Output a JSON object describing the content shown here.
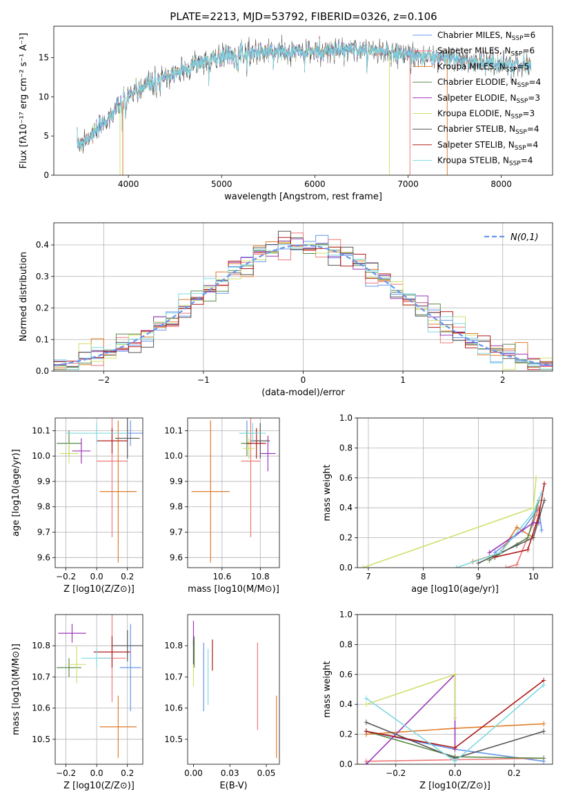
{
  "figure": {
    "title": "PLATE=2213, MJD=53792, FIBERID=0326, z=0.106"
  },
  "colors": {
    "Chabrier MILES": "#6495ed",
    "Salpeter MILES": "#ee7777",
    "Kroupa MILES": "#e07b28",
    "Chabrier ELODIE": "#5a8a4a",
    "Salpeter ELODIE": "#9a35b8",
    "Kroupa ELODIE": "#cfe06a",
    "Chabrier STELIB": "#555555",
    "Salpeter STELIB": "#b01818",
    "Kroupa STELIB": "#7fd8e0",
    "normal": "#6495ed"
  },
  "chart_data": [
    {
      "id": "spectrum",
      "type": "line",
      "xlabel": "wavelength [Angstrom, rest frame]",
      "ylabel": "Flux [f_λ 10^-17 erg cm^-2 s^-1 A^-1]",
      "xlim": [
        3200,
        8550
      ],
      "ylim": [
        0,
        19
      ],
      "xticks": [
        4000,
        5000,
        6000,
        7000,
        8000
      ],
      "yticks": [
        0,
        5,
        10,
        15
      ],
      "legend_position": "top-right",
      "series": [
        {
          "name": "Chabrier MILES, N_SSP=6"
        },
        {
          "name": "Salpeter MILES, N_SSP=6"
        },
        {
          "name": "Kroupa MILES, N_SSP=5"
        },
        {
          "name": "Chabrier ELODIE, N_SSP=4"
        },
        {
          "name": "Salpeter ELODIE, N_SSP=3"
        },
        {
          "name": "Kroupa ELODIE, N_SSP=3"
        },
        {
          "name": "Chabrier STELIB, N_SSP=4"
        },
        {
          "name": "Salpeter STELIB, N_SSP=4"
        },
        {
          "name": "Kroupa STELIB, N_SSP=4"
        }
      ],
      "continuum": {
        "x": [
          3450,
          3600,
          3800,
          3950,
          4100,
          4300,
          4600,
          4900,
          5200,
          5500,
          5800,
          6100,
          6400,
          6700,
          7000,
          7300,
          7600,
          8000,
          8300
        ],
        "y": [
          4.0,
          5.0,
          7.5,
          9.5,
          11.0,
          12.0,
          13.5,
          15.0,
          15.5,
          15.8,
          15.8,
          15.8,
          16.0,
          15.8,
          15.4,
          15.0,
          14.6,
          14.2,
          14.0
        ]
      }
    },
    {
      "id": "residuals",
      "type": "step",
      "xlabel": "(data-model)/error",
      "ylabel": "Normed distribution",
      "xlim": [
        -2.5,
        2.5
      ],
      "ylim": [
        0,
        0.47
      ],
      "xticks": [
        -2,
        -1,
        0,
        1,
        2
      ],
      "yticks": [
        0.0,
        0.1,
        0.2,
        0.3,
        0.4
      ],
      "grid": true,
      "legend_position": "top-right",
      "normal_label": "N(0,1)"
    },
    {
      "id": "age_vs_Z",
      "type": "errorbar",
      "xlabel": "Z [log10(Z/Z⊙)]",
      "ylabel": "age [log10(age/yr)]",
      "xlim": [
        -0.27,
        0.3
      ],
      "ylim": [
        9.56,
        10.15
      ],
      "xticks": [
        -0.2,
        0.0,
        0.2
      ],
      "yticks": [
        9.6,
        9.7,
        9.8,
        9.9,
        10.0,
        10.1
      ],
      "grid": true,
      "points": [
        {
          "s": "Chabrier MILES",
          "x": 0.22,
          "xerr": 0.08,
          "y": 10.09,
          "yerr": 0.05
        },
        {
          "s": "Salpeter MILES",
          "x": 0.1,
          "xerr": 0.1,
          "y": 9.98,
          "yerr": 0.3
        },
        {
          "s": "Kroupa MILES",
          "x": 0.14,
          "xerr": 0.12,
          "y": 9.86,
          "yerr": 0.28
        },
        {
          "s": "Chabrier ELODIE",
          "x": -0.18,
          "xerr": 0.08,
          "y": 10.05,
          "yerr": 0.05
        },
        {
          "s": "Salpeter ELODIE",
          "x": -0.1,
          "xerr": 0.06,
          "y": 10.02,
          "yerr": 0.05
        },
        {
          "s": "Kroupa ELODIE",
          "x": -0.18,
          "xerr": 0.06,
          "y": 10.01,
          "yerr": 0.04
        },
        {
          "s": "Chabrier STELIB",
          "x": 0.2,
          "xerr": 0.08,
          "y": 10.07,
          "yerr": 0.08
        },
        {
          "s": "Salpeter STELIB",
          "x": 0.1,
          "xerr": 0.1,
          "y": 10.06,
          "yerr": 0.05
        },
        {
          "s": "Kroupa STELIB",
          "x": 0.0,
          "xerr": 0.2,
          "y": 10.09,
          "yerr": 0.04
        }
      ]
    },
    {
      "id": "age_vs_mass",
      "type": "errorbar",
      "xlabel": "mass [log10(M/M⊙)]",
      "ylabel": "",
      "xlim": [
        10.42,
        10.9
      ],
      "ylim": [
        9.56,
        10.15
      ],
      "xticks": [
        10.6,
        10.8
      ],
      "yticks": [
        9.6,
        9.7,
        9.8,
        9.9,
        10.0,
        10.1
      ],
      "grid": true,
      "points": [
        {
          "s": "Chabrier MILES",
          "x": 10.73,
          "xerr": 0.04,
          "y": 10.09,
          "yerr": 0.05
        },
        {
          "s": "Salpeter MILES",
          "x": 10.75,
          "xerr": 0.05,
          "y": 9.98,
          "yerr": 0.3
        },
        {
          "s": "Kroupa MILES",
          "x": 10.54,
          "xerr": 0.1,
          "y": 9.86,
          "yerr": 0.28
        },
        {
          "s": "Chabrier ELODIE",
          "x": 10.73,
          "xerr": 0.03,
          "y": 10.05,
          "yerr": 0.05
        },
        {
          "s": "Salpeter ELODIE",
          "x": 10.84,
          "xerr": 0.04,
          "y": 10.01,
          "yerr": 0.07
        },
        {
          "s": "Kroupa ELODIE",
          "x": 10.74,
          "xerr": 0.03,
          "y": 10.03,
          "yerr": 0.04
        },
        {
          "s": "Chabrier STELIB",
          "x": 10.8,
          "xerr": 0.05,
          "y": 10.06,
          "yerr": 0.07
        },
        {
          "s": "Salpeter STELIB",
          "x": 10.78,
          "xerr": 0.05,
          "y": 10.05,
          "yerr": 0.06
        },
        {
          "s": "Kroupa STELIB",
          "x": 10.76,
          "xerr": 0.07,
          "y": 10.09,
          "yerr": 0.04
        }
      ]
    },
    {
      "id": "massweight_vs_age",
      "type": "line",
      "xlabel": "age [log10(age/yr)]",
      "ylabel": "mass weight",
      "xlim": [
        6.8,
        10.35
      ],
      "ylim": [
        0,
        1
      ],
      "xticks": [
        7,
        8,
        9,
        10
      ],
      "yticks": [
        0.0,
        0.2,
        0.4,
        0.6,
        0.8,
        1.0
      ],
      "grid": true,
      "series": [
        {
          "s": "Chabrier MILES",
          "x": [
            9.3,
            9.8,
            10.1,
            10.15
          ],
          "y": [
            0.1,
            0.25,
            0.4,
            0.25
          ]
        },
        {
          "s": "Salpeter MILES",
          "x": [
            9.5,
            9.7,
            10.0,
            10.1
          ],
          "y": [
            0.0,
            0.02,
            0.3,
            0.4
          ]
        },
        {
          "s": "Kroupa MILES",
          "x": [
            8.9,
            9.4,
            9.7,
            10.0
          ],
          "y": [
            0.04,
            0.1,
            0.27,
            0.2
          ]
        },
        {
          "s": "Chabrier ELODIE",
          "x": [
            9.2,
            9.9,
            10.1
          ],
          "y": [
            0.05,
            0.2,
            0.45
          ]
        },
        {
          "s": "Salpeter ELODIE",
          "x": [
            9.2,
            10.0,
            10.1
          ],
          "y": [
            0.1,
            0.3,
            0.3
          ]
        },
        {
          "s": "Kroupa ELODIE",
          "x": [
            6.9,
            10.0,
            10.05
          ],
          "y": [
            0.0,
            0.4,
            0.6
          ]
        },
        {
          "s": "Chabrier STELIB",
          "x": [
            9.0,
            9.7,
            10.0,
            10.2
          ],
          "y": [
            0.03,
            0.15,
            0.2,
            0.45
          ]
        },
        {
          "s": "Salpeter STELIB",
          "x": [
            9.3,
            9.9,
            10.1,
            10.2
          ],
          "y": [
            0.07,
            0.12,
            0.35,
            0.56
          ]
        },
        {
          "s": "Kroupa STELIB",
          "x": [
            8.6,
            9.4,
            10.0,
            10.15
          ],
          "y": [
            0.0,
            0.1,
            0.37,
            0.5
          ]
        }
      ]
    },
    {
      "id": "mass_vs_Z",
      "type": "errorbar",
      "xlabel": "Z [log10(Z/Z⊙)]",
      "ylabel": "mass [log10(M/M⊙)]",
      "xlim": [
        -0.27,
        0.3
      ],
      "ylim": [
        10.42,
        10.9
      ],
      "xticks": [
        -0.2,
        0.0,
        0.2
      ],
      "yticks": [
        10.5,
        10.6,
        10.7,
        10.8
      ],
      "grid": true,
      "points": [
        {
          "s": "Chabrier MILES",
          "x": 0.22,
          "xerr": 0.07,
          "y": 10.73,
          "yerr": 0.14
        },
        {
          "s": "Salpeter MILES",
          "x": 0.1,
          "xerr": 0.09,
          "y": 10.76,
          "yerr": 0.14
        },
        {
          "s": "Kroupa MILES",
          "x": 0.14,
          "xerr": 0.12,
          "y": 10.54,
          "yerr": 0.1
        },
        {
          "s": "Chabrier ELODIE",
          "x": -0.18,
          "xerr": 0.08,
          "y": 10.73,
          "yerr": 0.03
        },
        {
          "s": "Salpeter ELODIE",
          "x": -0.16,
          "xerr": 0.09,
          "y": 10.84,
          "yerr": 0.03
        },
        {
          "s": "Kroupa ELODIE",
          "x": -0.13,
          "xerr": 0.06,
          "y": 10.74,
          "yerr": 0.06
        },
        {
          "s": "Chabrier STELIB",
          "x": 0.2,
          "xerr": 0.1,
          "y": 10.8,
          "yerr": 0.05
        },
        {
          "s": "Salpeter STELIB",
          "x": 0.1,
          "xerr": 0.12,
          "y": 10.78,
          "yerr": 0.05
        },
        {
          "s": "Kroupa STELIB",
          "x": 0.0,
          "xerr": 0.1,
          "y": 10.76,
          "yerr": 0.03
        }
      ]
    },
    {
      "id": "mass_vs_EBV",
      "type": "errorbar",
      "xlabel": "E(B-V)",
      "ylabel": "",
      "xlim": [
        -0.004,
        0.059
      ],
      "ylim": [
        10.42,
        10.9
      ],
      "xticks": [
        0.0,
        0.025,
        0.05
      ],
      "yticks": [
        10.5,
        10.6,
        10.7,
        10.8
      ],
      "grid": false,
      "points": [
        {
          "s": "Chabrier MILES",
          "x": 0.007,
          "xerr": 0,
          "y": 10.7,
          "yerr": 0.11
        },
        {
          "s": "Salpeter MILES",
          "x": 0.044,
          "xerr": 0,
          "y": 10.67,
          "yerr": 0.14
        },
        {
          "s": "Kroupa MILES",
          "x": 0.057,
          "xerr": 0,
          "y": 10.54,
          "yerr": 0.1
        },
        {
          "s": "Chabrier ELODIE",
          "x": 0.0005,
          "xerr": 0,
          "y": 10.78,
          "yerr": 0.05
        },
        {
          "s": "Salpeter ELODIE",
          "x": 0.0,
          "xerr": 0,
          "y": 10.84,
          "yerr": 0.04
        },
        {
          "s": "Kroupa ELODIE",
          "x": 0.0,
          "xerr": 0,
          "y": 10.72,
          "yerr": 0.05
        },
        {
          "s": "Chabrier STELIB",
          "x": 0.0,
          "xerr": 0,
          "y": 10.78,
          "yerr": 0.04
        },
        {
          "s": "Salpeter STELIB",
          "x": 0.013,
          "xerr": 0,
          "y": 10.77,
          "yerr": 0.05
        },
        {
          "s": "Kroupa STELIB",
          "x": 0.01,
          "xerr": 0,
          "y": 10.7,
          "yerr": 0.09
        }
      ]
    },
    {
      "id": "massweight_vs_Z",
      "type": "line",
      "xlabel": "Z [log10(Z/Z⊙)]",
      "ylabel": "mass weight",
      "xlim": [
        -0.33,
        0.33
      ],
      "ylim": [
        0,
        1
      ],
      "xticks": [
        -0.2,
        0.0,
        0.2
      ],
      "yticks": [
        0.0,
        0.2,
        0.4,
        0.6,
        0.8,
        1.0
      ],
      "grid": true,
      "series": [
        {
          "s": "Chabrier MILES",
          "x": [
            -0.3,
            0.0,
            0.3
          ],
          "y": [
            0.22,
            0.1,
            0.02
          ]
        },
        {
          "s": "Salpeter MILES",
          "x": [
            -0.3,
            0.0,
            0.3
          ],
          "y": [
            0.02,
            0.03,
            0.04
          ]
        },
        {
          "s": "Kroupa MILES",
          "x": [
            -0.3,
            0.0,
            0.3
          ],
          "y": [
            0.2,
            0.24,
            0.27
          ]
        },
        {
          "s": "Chabrier ELODIE",
          "x": [
            -0.3,
            0.0,
            0.3
          ],
          "y": [
            0.22,
            0.05,
            0.04
          ]
        },
        {
          "s": "Salpeter ELODIE",
          "x": [
            -0.3,
            0.0,
            0.0
          ],
          "y": [
            0.0,
            0.6,
            0.1
          ]
        },
        {
          "s": "Kroupa ELODIE",
          "x": [
            -0.3,
            0.0,
            0.0
          ],
          "y": [
            0.4,
            0.6,
            0.31
          ]
        },
        {
          "s": "Chabrier STELIB",
          "x": [
            -0.3,
            0.0,
            0.3
          ],
          "y": [
            0.28,
            0.04,
            0.22
          ]
        },
        {
          "s": "Salpeter STELIB",
          "x": [
            -0.3,
            0.0,
            0.3
          ],
          "y": [
            0.22,
            0.11,
            0.56
          ]
        },
        {
          "s": "Kroupa STELIB",
          "x": [
            -0.3,
            0.0,
            0.3
          ],
          "y": [
            0.44,
            0.02,
            0.53
          ]
        }
      ]
    }
  ]
}
